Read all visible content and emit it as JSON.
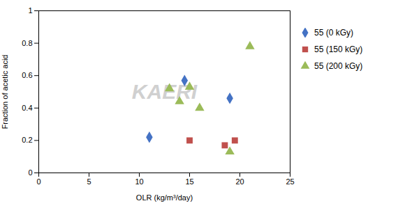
{
  "chart_data": {
    "type": "scatter",
    "xlabel": "OLR (kg/m³/day)",
    "ylabel": "Fraction of acetic acid",
    "annotations": [
      {
        "text": "KAERI",
        "color": "#d0d0d0"
      }
    ],
    "series": [
      {
        "name": "55 (0 kGy)",
        "color": "#4472C4",
        "marker": "diamond",
        "x": [
          11.0,
          14.5,
          19.0
        ],
        "values": [
          0.22,
          0.57,
          0.46
        ]
      },
      {
        "name": "55 (150 kGy)",
        "color": "#C0504D",
        "marker": "square",
        "x": [
          15.0,
          18.5,
          19.5
        ],
        "values": [
          0.2,
          0.17,
          0.2
        ]
      },
      {
        "name": "55 (200 kGy)",
        "color": "#9BBB59",
        "marker": "triangle",
        "x": [
          13.0,
          14.0,
          15.0,
          16.0,
          19.0,
          21.0
        ],
        "values": [
          0.52,
          0.44,
          0.53,
          0.4,
          0.13,
          0.78
        ]
      }
    ],
    "xlim": [
      0,
      25
    ],
    "xticks": [
      0,
      5,
      10,
      15,
      20,
      25
    ],
    "ylim": [
      0,
      1
    ],
    "yticks": [
      0,
      0.2,
      0.4,
      0.6,
      0.8,
      1
    ],
    "grid": false,
    "legend": "right"
  }
}
